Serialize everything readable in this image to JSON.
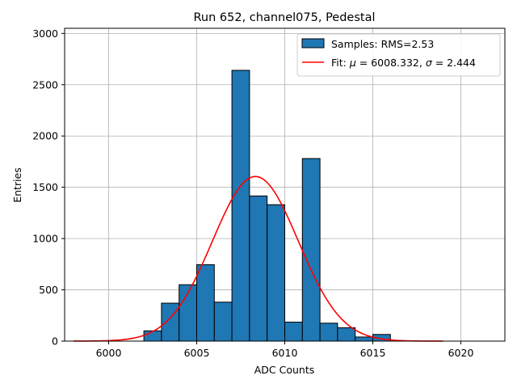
{
  "chart_data": {
    "type": "bar",
    "title": "Run 652, channel075, Pedestal",
    "xlabel": "ADC Counts",
    "ylabel": "Entries",
    "xlim": [
      5997.5,
      6022.5
    ],
    "ylim": [
      0,
      3050
    ],
    "grid": true,
    "legend_position": "top-right",
    "x_ticks": [
      6000,
      6005,
      6010,
      6015,
      6020
    ],
    "y_ticks": [
      0,
      500,
      1000,
      1500,
      2000,
      2500,
      3000
    ],
    "histogram": {
      "name": "Samples: RMS=2.53",
      "color": "#1f77b4",
      "edgecolor": "#000000",
      "bin_width": 1,
      "bins": [
        {
          "left": 6002,
          "value": 100
        },
        {
          "left": 6003,
          "value": 370
        },
        {
          "left": 6004,
          "value": 550
        },
        {
          "left": 6005,
          "value": 745
        },
        {
          "left": 6006,
          "value": 380
        },
        {
          "left": 6007,
          "value": 2640
        },
        {
          "left": 6008,
          "value": 1415
        },
        {
          "left": 6009,
          "value": 1330
        },
        {
          "left": 6010,
          "value": 185
        },
        {
          "left": 6011,
          "value": 1780
        },
        {
          "left": 6012,
          "value": 175
        },
        {
          "left": 6013,
          "value": 130
        },
        {
          "left": 6014,
          "value": 40
        },
        {
          "left": 6015,
          "value": 65
        }
      ]
    },
    "fit": {
      "name_prefix": "Fit: ",
      "mu_symbol": "μ",
      "mu_value": " = 6008.332, ",
      "sigma_symbol": "σ",
      "sigma_value": " = 2.444",
      "color": "#ff0000",
      "mu": 6008.332,
      "sigma": 2.444,
      "amplitude": 1605,
      "x_range": [
        5998,
        6019
      ]
    }
  }
}
